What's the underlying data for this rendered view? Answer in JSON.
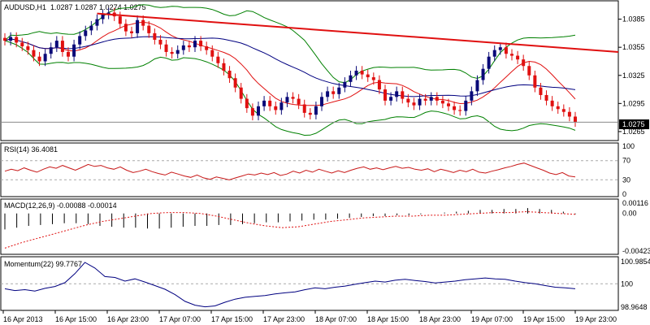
{
  "header": {
    "symbol": "AUDUSD,H1",
    "ohlc": "1.0287 1.0287 1.0274 1.0275"
  },
  "price_axis": {
    "ticks": [
      "1.0385",
      "1.0355",
      "1.0325",
      "1.0295",
      "1.0265"
    ],
    "current": "1.0275"
  },
  "time_axis": {
    "ticks": [
      "16 Apr 2013",
      "16 Apr 15:00",
      "16 Apr 23:00",
      "17 Apr 07:00",
      "17 Apr 15:00",
      "17 Apr 23:00",
      "18 Apr 07:00",
      "18 Apr 15:00",
      "18 Apr 23:00",
      "19 Apr 07:00",
      "19 Apr 15:00",
      "19 Apr 23:00"
    ]
  },
  "rsi": {
    "title": "RSI(14) 36.4081",
    "ticks": [
      "100",
      "70",
      "30",
      "0"
    ]
  },
  "macd": {
    "title": "MACD(12,26,9) -0.00088 -0.00014",
    "ticks": [
      "0.00116",
      "0.00",
      "-0.00423"
    ]
  },
  "momentum": {
    "title": "Momentum(22) 99.7767",
    "ticks": [
      "100.9854",
      "100",
      "98.9648"
    ]
  },
  "colors": {
    "bull": "#0a0a78",
    "bear": "#e01010",
    "trend": "#e01010",
    "bb": "#008000",
    "ma_fast": "#e01010",
    "ma_slow": "#000080",
    "rsi": "#c81818",
    "momentum": "#000080"
  },
  "chart_data": [
    {
      "type": "candlestick",
      "title": "AUDUSD,H1",
      "ylim": [
        1.0258,
        1.0402
      ],
      "x": [
        "16 Apr 2013",
        "16 Apr 15:00",
        "16 Apr 23:00",
        "17 Apr 07:00",
        "17 Apr 15:00",
        "17 Apr 23:00",
        "18 Apr 07:00",
        "18 Apr 15:00",
        "18 Apr 23:00",
        "19 Apr 07:00",
        "19 Apr 15:00",
        "19 Apr 23:00"
      ],
      "closes": [
        1.0362,
        1.0366,
        1.036,
        1.0356,
        1.0352,
        1.0345,
        1.034,
        1.0348,
        1.0355,
        1.0362,
        1.035,
        1.0345,
        1.0358,
        1.0367,
        1.0373,
        1.0378,
        1.0385,
        1.039,
        1.0392,
        1.0388,
        1.038,
        1.0372,
        1.037,
        1.0384,
        1.0378,
        1.037,
        1.0363,
        1.0358,
        1.035,
        1.0348,
        1.0352,
        1.0357,
        1.0355,
        1.0362,
        1.0356,
        1.0352,
        1.0345,
        1.0338,
        1.033,
        1.0322,
        1.0312,
        1.03,
        1.029,
        1.0282,
        1.0292,
        1.0298,
        1.0292,
        1.0288,
        1.0296,
        1.0302,
        1.03,
        1.0294,
        1.0285,
        1.0283,
        1.0292,
        1.0302,
        1.0308,
        1.0305,
        1.0312,
        1.0318,
        1.0325,
        1.033,
        1.0326,
        1.0323,
        1.032,
        1.031,
        1.0298,
        1.0302,
        1.0308,
        1.03,
        1.0296,
        1.0293,
        1.03,
        1.0298,
        1.0302,
        1.0298,
        1.0295,
        1.0292,
        1.0288,
        1.0287,
        1.0298,
        1.0308,
        1.032,
        1.0332,
        1.0345,
        1.0352,
        1.0355,
        1.0348,
        1.0346,
        1.0342,
        1.0335,
        1.0325,
        1.0312,
        1.0304,
        1.0298,
        1.0292,
        1.0289,
        1.0286,
        1.0281,
        1.0275
      ],
      "trendline": {
        "x": [
          "16 Apr 15:00",
          "19 Apr 23:00"
        ],
        "y": [
          1.0391,
          1.035
        ]
      },
      "current_price": 1.0275
    },
    {
      "type": "line",
      "title": "RSI(14) 36.4081",
      "ylim": [
        0,
        100
      ],
      "levels": [
        70,
        30
      ],
      "series": [
        {
          "values": [
            48,
            52,
            49,
            55,
            50,
            46,
            52,
            57,
            54,
            60,
            55,
            50,
            56,
            62,
            58,
            60,
            55,
            52,
            57,
            50,
            45,
            48,
            52,
            47,
            43,
            40,
            46,
            42,
            38,
            35,
            40,
            34,
            31,
            36,
            33,
            30,
            34,
            38,
            42,
            40,
            44,
            41,
            45,
            39,
            42,
            48,
            44,
            50,
            46,
            52,
            48,
            44,
            49,
            45,
            50,
            54,
            57,
            52,
            55,
            51,
            55,
            58,
            54,
            56,
            52,
            50,
            53,
            47,
            52,
            49,
            45,
            50,
            47,
            52,
            46,
            44,
            48,
            51,
            55,
            58,
            62,
            65,
            60,
            55,
            50,
            44,
            41,
            45,
            38,
            36
          ]
        }
      ]
    },
    {
      "type": "bar_line",
      "title": "MACD(12,26,9) -0.00088 -0.00014",
      "ylim": [
        -0.00423,
        0.00116
      ],
      "series": [
        {
          "name": "MACD",
          "values": [
            -0.0018,
            -0.0016,
            -0.0014,
            -0.0013,
            -0.0012,
            -0.0011,
            -0.0011,
            -0.0012,
            -0.0014,
            -0.0015,
            -0.0016,
            -0.0016,
            -0.0017,
            -0.0017,
            -0.0016,
            -0.0015,
            -0.0014,
            -0.0014,
            -0.0013,
            -0.0013,
            -0.0012,
            -0.0011,
            -0.001,
            -0.001,
            -0.0009,
            -0.0008,
            -0.0007,
            -0.0007,
            -0.0006,
            -0.0005,
            -0.0004,
            -0.0003,
            -0.0003,
            -0.0002,
            -0.0002,
            -0.0001,
            0.0,
            0.0001,
            0.0002,
            0.0003,
            0.0004,
            0.0004,
            0.0005,
            0.0005,
            0.0006,
            0.0005,
            0.0004,
            0.0002,
            -0.0001
          ]
        },
        {
          "name": "Signal",
          "values": [
            -0.0039,
            -0.0033,
            -0.0028,
            -0.0023,
            -0.0018,
            -0.0013,
            -0.0009,
            -0.0006,
            -0.0003,
            0.0,
            0.0001,
            0.0001,
            0.0,
            -0.0003,
            -0.0007,
            -0.0011,
            -0.0014,
            -0.0016,
            -0.0015,
            -0.0012,
            -0.0009,
            -0.0007,
            -0.0005,
            -0.0004,
            -0.0003,
            -0.0003,
            -0.0002,
            -0.0002,
            -0.0001,
            0.0,
            0.0001,
            0.0001,
            0.0002,
            0.0001,
            0.0,
            -0.0001
          ]
        }
      ]
    },
    {
      "type": "line",
      "title": "Momentum(22) 99.7767",
      "ylim": [
        98.9648,
        100.9854
      ],
      "series": [
        {
          "values": [
            99.78,
            99.7,
            99.74,
            99.68,
            99.8,
            99.88,
            100.05,
            100.45,
            100.95,
            100.7,
            100.32,
            100.28,
            100.12,
            100.22,
            100.08,
            99.92,
            99.76,
            99.52,
            99.22,
            99.05,
            98.98,
            99.02,
            99.18,
            99.32,
            99.4,
            99.44,
            99.48,
            99.55,
            99.6,
            99.64,
            99.74,
            99.82,
            99.78,
            99.85,
            99.9,
            99.98,
            100.05,
            100.12,
            100.08,
            100.16,
            100.2,
            100.15,
            100.1,
            100.04,
            100.08,
            100.12,
            100.18,
            100.22,
            100.26,
            100.22,
            100.2,
            100.12,
            100.05,
            100.0,
            99.92,
            99.85,
            99.82,
            99.78
          ]
        }
      ]
    }
  ]
}
